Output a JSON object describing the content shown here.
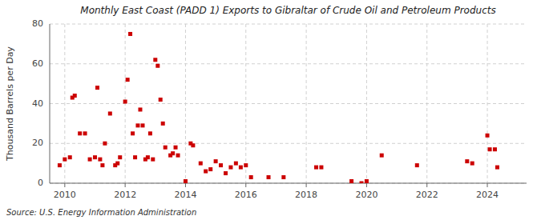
{
  "chart_data": {
    "type": "scatter",
    "title": "Monthly East Coast (PADD 1) Exports to Gibraltar of Crude Oil and Petroleum Products",
    "y_label": "Thousand Barrels per Day",
    "annotation": "Source: U.S. Energy Information Administration",
    "color": "#cc0000",
    "marker": "square",
    "grid": true,
    "xlim": [
      2009.5,
      2025.3
    ],
    "ylim": [
      0,
      80
    ],
    "xticks": [
      2010,
      2012,
      2014,
      2016,
      2018,
      2020,
      2022,
      2024
    ],
    "yticks": [
      0,
      20,
      40,
      60,
      80
    ],
    "x": [
      2009.83,
      2010.0,
      2010.17,
      2010.25,
      2010.33,
      2010.5,
      2010.67,
      2010.83,
      2011.0,
      2011.08,
      2011.17,
      2011.25,
      2011.33,
      2011.5,
      2011.67,
      2011.75,
      2011.83,
      2012.0,
      2012.08,
      2012.17,
      2012.25,
      2012.33,
      2012.42,
      2012.5,
      2012.58,
      2012.67,
      2012.75,
      2012.83,
      2012.92,
      2013.0,
      2013.08,
      2013.17,
      2013.25,
      2013.33,
      2013.5,
      2013.58,
      2013.67,
      2013.75,
      2014.0,
      2014.17,
      2014.25,
      2014.5,
      2014.67,
      2014.83,
      2015.0,
      2015.17,
      2015.33,
      2015.5,
      2015.67,
      2015.83,
      2016.0,
      2016.17,
      2016.75,
      2017.25,
      2018.33,
      2018.5,
      2019.5,
      2019.83,
      2020.0,
      2020.5,
      2021.67,
      2023.33,
      2023.5,
      2024.0,
      2024.08,
      2024.25,
      2024.33
    ],
    "values": [
      9,
      12,
      13,
      43,
      44,
      25,
      25,
      12,
      13,
      48,
      12,
      9,
      20,
      35,
      9,
      10,
      13,
      41,
      52,
      75,
      25,
      13,
      29,
      37,
      29,
      12,
      13,
      25,
      12,
      62,
      59,
      42,
      30,
      18,
      14,
      15,
      18,
      14,
      1,
      20,
      19,
      10,
      6,
      7,
      11,
      9,
      5,
      8,
      10,
      8,
      9,
      3,
      3,
      3,
      8,
      8,
      1,
      0,
      1,
      14,
      9,
      11,
      10,
      24,
      17,
      17,
      8
    ]
  }
}
